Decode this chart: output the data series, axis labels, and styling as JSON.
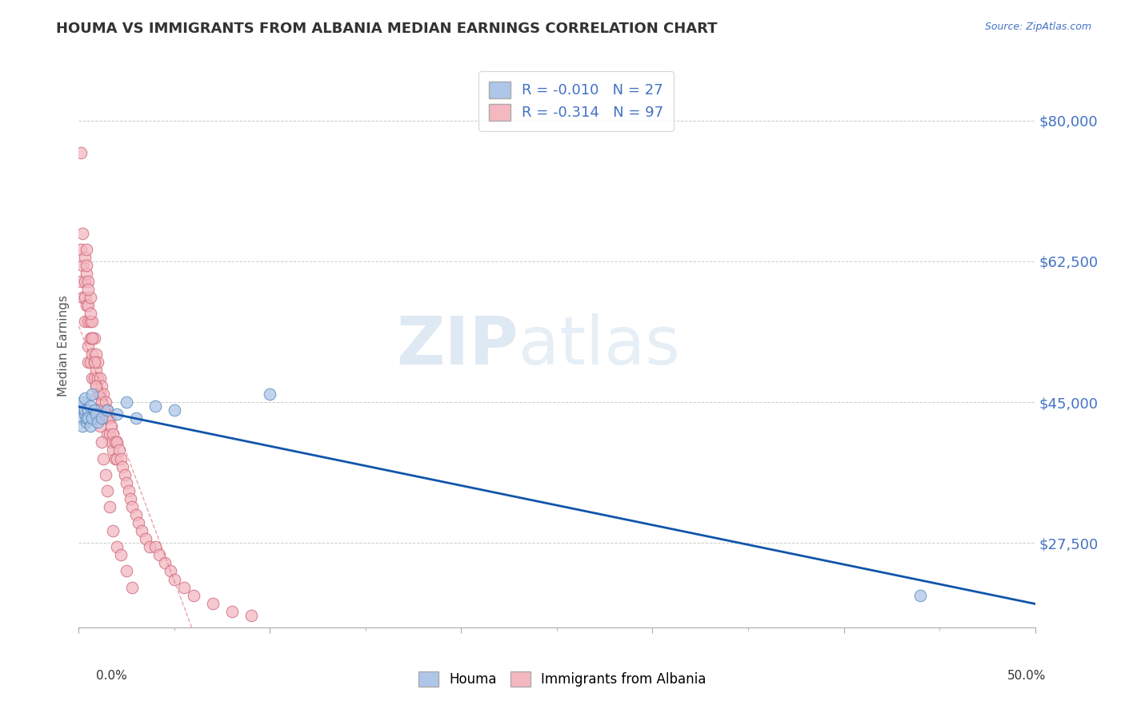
{
  "title": "HOUMA VS IMMIGRANTS FROM ALBANIA MEDIAN EARNINGS CORRELATION CHART",
  "source_text": "Source: ZipAtlas.com",
  "ylabel": "Median Earnings",
  "xlim": [
    0.0,
    0.5
  ],
  "ylim": [
    17000,
    87000
  ],
  "yticks": [
    27500,
    45000,
    62500,
    80000
  ],
  "ytick_labels": [
    "$27,500",
    "$45,000",
    "$62,500",
    "$80,000"
  ],
  "xtick_ends": [
    "0.0%",
    "50.0%"
  ],
  "legend_entries": [
    {
      "label": "R = -0.010   N = 27",
      "color": "#aec6e8"
    },
    {
      "label": "R = -0.314   N = 97",
      "color": "#f4b8c1"
    }
  ],
  "bottom_legend": [
    {
      "label": "Houma",
      "color": "#aec6e8"
    },
    {
      "label": "Immigrants from Albania",
      "color": "#f4b8c1"
    }
  ],
  "watermark_zip": "ZIP",
  "watermark_atlas": "atlas",
  "title_color": "#333333",
  "title_fontsize": 13,
  "axis_label_color": "#555555",
  "tick_color_y": "#4472c4",
  "grid_color": "#cccccc",
  "blue_dot_color": "#aec6e8",
  "blue_dot_edge": "#5588bb",
  "pink_dot_color": "#f4b8c1",
  "pink_dot_edge": "#cc6677",
  "blue_line_color": "#1155aa",
  "pink_line_color": "#dd6677",
  "source_color": "#4472c4",
  "blue_dots_x": [
    0.001,
    0.001,
    0.002,
    0.002,
    0.003,
    0.003,
    0.003,
    0.004,
    0.004,
    0.005,
    0.005,
    0.006,
    0.006,
    0.007,
    0.007,
    0.008,
    0.009,
    0.01,
    0.012,
    0.015,
    0.02,
    0.025,
    0.03,
    0.04,
    0.05,
    0.1,
    0.44
  ],
  "blue_dots_y": [
    43000,
    44500,
    42000,
    45000,
    43500,
    44000,
    45500,
    42500,
    43000,
    44000,
    43000,
    44500,
    42000,
    46000,
    43000,
    44000,
    43500,
    42500,
    43000,
    44000,
    43500,
    45000,
    43000,
    44500,
    44000,
    46000,
    21000
  ],
  "pink_dots_x": [
    0.001,
    0.001,
    0.001,
    0.002,
    0.002,
    0.002,
    0.003,
    0.003,
    0.003,
    0.003,
    0.004,
    0.004,
    0.004,
    0.005,
    0.005,
    0.005,
    0.005,
    0.005,
    0.006,
    0.006,
    0.006,
    0.006,
    0.007,
    0.007,
    0.007,
    0.007,
    0.008,
    0.008,
    0.008,
    0.009,
    0.009,
    0.009,
    0.01,
    0.01,
    0.01,
    0.01,
    0.011,
    0.011,
    0.012,
    0.012,
    0.012,
    0.013,
    0.013,
    0.014,
    0.014,
    0.015,
    0.015,
    0.015,
    0.016,
    0.016,
    0.017,
    0.017,
    0.018,
    0.018,
    0.019,
    0.019,
    0.02,
    0.02,
    0.021,
    0.022,
    0.023,
    0.024,
    0.025,
    0.026,
    0.027,
    0.028,
    0.03,
    0.031,
    0.033,
    0.035,
    0.037,
    0.04,
    0.042,
    0.045,
    0.048,
    0.05,
    0.055,
    0.06,
    0.07,
    0.08,
    0.09,
    0.004,
    0.005,
    0.006,
    0.007,
    0.008,
    0.009,
    0.01,
    0.011,
    0.012,
    0.013,
    0.014,
    0.015,
    0.016,
    0.018,
    0.02,
    0.022,
    0.025,
    0.028
  ],
  "pink_dots_y": [
    76000,
    64000,
    60000,
    66000,
    62000,
    58000,
    63000,
    60000,
    58000,
    55000,
    64000,
    61000,
    57000,
    60000,
    57000,
    55000,
    52000,
    50000,
    58000,
    55000,
    53000,
    50000,
    55000,
    53000,
    51000,
    48000,
    53000,
    50000,
    48000,
    51000,
    49000,
    47000,
    50000,
    48000,
    46000,
    44000,
    48000,
    46000,
    47000,
    45000,
    43000,
    46000,
    44000,
    45000,
    43000,
    44000,
    43000,
    41000,
    43000,
    41000,
    42000,
    40000,
    41000,
    39000,
    40000,
    38000,
    40000,
    38000,
    39000,
    38000,
    37000,
    36000,
    35000,
    34000,
    33000,
    32000,
    31000,
    30000,
    29000,
    28000,
    27000,
    27000,
    26000,
    25000,
    24000,
    23000,
    22000,
    21000,
    20000,
    19000,
    18500,
    62000,
    59000,
    56000,
    53000,
    50000,
    47000,
    44000,
    42000,
    40000,
    38000,
    36000,
    34000,
    32000,
    29000,
    27000,
    26000,
    24000,
    22000
  ]
}
